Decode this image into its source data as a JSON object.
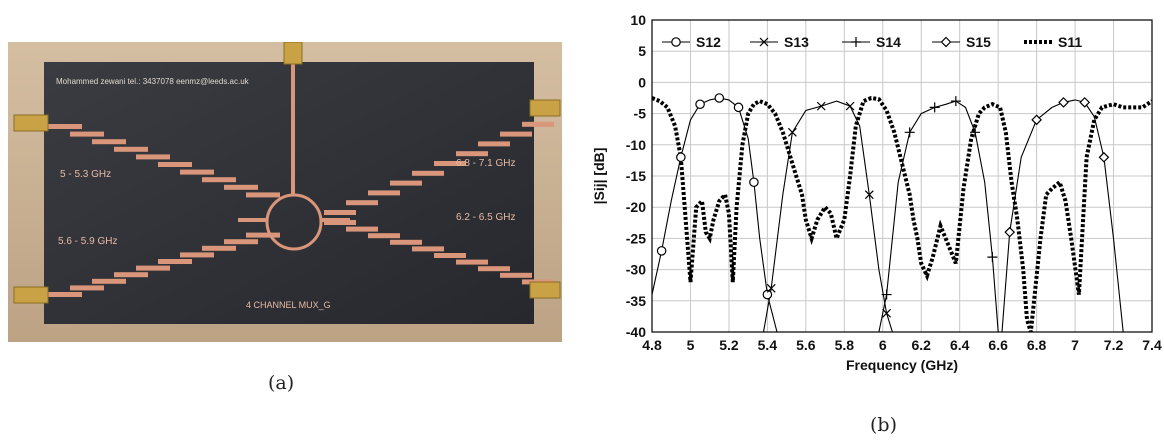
{
  "figure": {
    "panel_a": {
      "caption": "(a)",
      "board_header": "Mohammed zewani   tel.: 3437078  eenmz@leeds.ac.uk",
      "label_top_left": "5 - 5.3  GHz",
      "label_bottom_left": "5.6 - 5.9  GHz",
      "label_top_right": "6.8 - 7.1  GHz",
      "label_bottom_right": "6.2 - 6.5  GHz",
      "board_footer": "4 CHANNEL MUX_G",
      "colors": {
        "table": "#c9b296",
        "board": "#2e3036",
        "copper": "#d9967a"
      }
    },
    "panel_b": {
      "caption": "(b)"
    }
  },
  "chart_data": {
    "type": "line",
    "xlabel": "Frequency (GHz)",
    "ylabel": "|Sij|   [dB]",
    "xlim": [
      4.8,
      7.4
    ],
    "ylim": [
      -40,
      10
    ],
    "xticks": [
      "4.8",
      "5",
      "5.2",
      "5.4",
      "5.6",
      "5.8",
      "6",
      "6.2",
      "6.4",
      "6.6",
      "6.8",
      "7",
      "7.2",
      "7.4"
    ],
    "yticks": [
      "10",
      "5",
      "0",
      "-5",
      "-10",
      "-15",
      "-20",
      "-25",
      "-30",
      "-35",
      "-40"
    ],
    "grid": true,
    "legend": "top, inside plot",
    "series": [
      {
        "name": "S12",
        "marker": "circle",
        "style": "solid",
        "x": [
          4.8,
          4.85,
          4.9,
          4.95,
          5.0,
          5.05,
          5.1,
          5.15,
          5.2,
          5.25,
          5.3,
          5.33,
          5.36,
          5.4,
          5.45
        ],
        "y": [
          -34,
          -27,
          -19,
          -12,
          -6,
          -3.5,
          -2.8,
          -2.5,
          -2.8,
          -4,
          -9,
          -16,
          -25,
          -34,
          -40
        ]
      },
      {
        "name": "S13",
        "marker": "x",
        "style": "solid",
        "x": [
          5.38,
          5.42,
          5.48,
          5.53,
          5.6,
          5.68,
          5.76,
          5.83,
          5.88,
          5.93,
          5.98,
          6.02,
          6.05
        ],
        "y": [
          -40,
          -33,
          -18,
          -8,
          -4.5,
          -3.8,
          -3,
          -3.8,
          -7,
          -18,
          -30,
          -37,
          -40
        ]
      },
      {
        "name": "S14",
        "marker": "plus",
        "style": "solid",
        "x": [
          5.98,
          6.02,
          6.08,
          6.14,
          6.2,
          6.27,
          6.33,
          6.38,
          6.43,
          6.48,
          6.53,
          6.57,
          6.6
        ],
        "y": [
          -40,
          -34,
          -16,
          -8,
          -5,
          -4,
          -3.5,
          -3,
          -4,
          -8,
          -16,
          -28,
          -40
        ]
      },
      {
        "name": "S15",
        "marker": "diamond",
        "style": "solid",
        "x": [
          6.62,
          6.66,
          6.72,
          6.8,
          6.88,
          6.94,
          7.0,
          7.05,
          7.1,
          7.15,
          7.2,
          7.25
        ],
        "y": [
          -40,
          -24,
          -12,
          -6,
          -4,
          -3.2,
          -2.8,
          -3.2,
          -5.5,
          -12,
          -25,
          -40
        ]
      },
      {
        "name": "S11",
        "marker": "none",
        "style": "dotted",
        "x": [
          4.8,
          4.84,
          4.88,
          4.92,
          4.95,
          4.97,
          5.0,
          5.03,
          5.06,
          5.08,
          5.1,
          5.12,
          5.15,
          5.18,
          5.2,
          5.22,
          5.24,
          5.27,
          5.3,
          5.33,
          5.36,
          5.4,
          5.44,
          5.48,
          5.52,
          5.55,
          5.58,
          5.6,
          5.63,
          5.66,
          5.7,
          5.73,
          5.76,
          5.8,
          5.83,
          5.86,
          5.9,
          5.94,
          5.98,
          6.02,
          6.06,
          6.1,
          6.14,
          6.16,
          6.18,
          6.2,
          6.23,
          6.26,
          6.3,
          6.34,
          6.38,
          6.42,
          6.46,
          6.5,
          6.53,
          6.57,
          6.61,
          6.64,
          6.67,
          6.7,
          6.73,
          6.75,
          6.77,
          6.79,
          6.82,
          6.85,
          6.88,
          6.92,
          6.95,
          6.98,
          7.02,
          7.06,
          7.1,
          7.14,
          7.2,
          7.25,
          7.3,
          7.35,
          7.4
        ],
        "y": [
          -2.5,
          -3,
          -4,
          -7,
          -12,
          -20,
          -32,
          -20,
          -19,
          -24,
          -25,
          -22,
          -19,
          -18,
          -21,
          -32,
          -20,
          -10,
          -5,
          -3.5,
          -3,
          -3.5,
          -5,
          -8,
          -12,
          -15,
          -18,
          -22,
          -25,
          -22,
          -20,
          -21,
          -25,
          -22,
          -15,
          -7,
          -3,
          -2.5,
          -2.7,
          -4.5,
          -8,
          -13,
          -18,
          -22,
          -25,
          -29,
          -31,
          -28,
          -23,
          -26,
          -29,
          -17,
          -9,
          -5,
          -4,
          -3.5,
          -4,
          -8,
          -16,
          -22,
          -30,
          -38,
          -40,
          -34,
          -25,
          -18,
          -17,
          -16,
          -19,
          -25,
          -34,
          -12,
          -6,
          -4,
          -3.5,
          -4,
          -4,
          -4,
          -3
        ]
      }
    ]
  }
}
